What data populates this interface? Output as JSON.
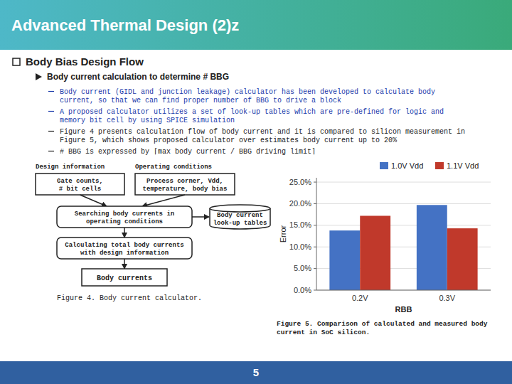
{
  "chart_data": {
    "type": "bar",
    "title": "Advanced Thermal Design (2)z",
    "categories": [
      "0.2V",
      "0.3V"
    ],
    "series": [
      {
        "name": "1.0V Vdd",
        "color": "#4472c4",
        "values": [
          0.138,
          0.197
        ]
      },
      {
        "name": "1.1V Vdd",
        "color": "#c0392b",
        "values": [
          0.172,
          0.143
        ]
      }
    ],
    "xlabel": "RBB",
    "ylabel": "Error",
    "ylim": [
      0,
      0.26
    ],
    "yticks": [
      {
        "value": 0.0,
        "label": "0.0%"
      },
      {
        "value": 0.05,
        "label": "5.0%"
      },
      {
        "value": 0.1,
        "label": "10.0%"
      },
      {
        "value": 0.15,
        "label": "15.0%"
      },
      {
        "value": 0.2,
        "label": "20.0%"
      },
      {
        "value": 0.25,
        "label": "25.0%"
      }
    ],
    "grid": true,
    "legend": "upper right",
    "annotations": [
      "Body Bias Design Flow",
      "Body current calculation to determine # BBG",
      "Body current (GIDL and junction leakage) calculator has been developed to calculate body\ncurrent, so that we can find proper number of BBG to drive a block",
      "A proposed calculator utilizes a set of look-up tables which are pre-defined for logic and\nmemory bit cell by using SPICE simulation",
      "Figure 4 presents calculation flow of body current and it is compared to silicon measurement in\nFigure 5, which shows proposed calculator over estimates body current up to 20%",
      "# BBG is expressed by ⌈max body current / BBG driving limit⌉",
      "Design information",
      "Operating conditions",
      "Gate counts,\n# bit cells",
      "Process corner, Vdd,\ntemperature, body bias",
      "Searching body currents in\noperating conditions",
      "Body current\nlook-up tables",
      "Calculating total body currents\nwith design information",
      "Body currents",
      "Figure 4. Body current calculator.",
      "Figure 5. Comparison of calculated and measured body\ncurrent in SoC silicon.",
      "5"
    ]
  }
}
